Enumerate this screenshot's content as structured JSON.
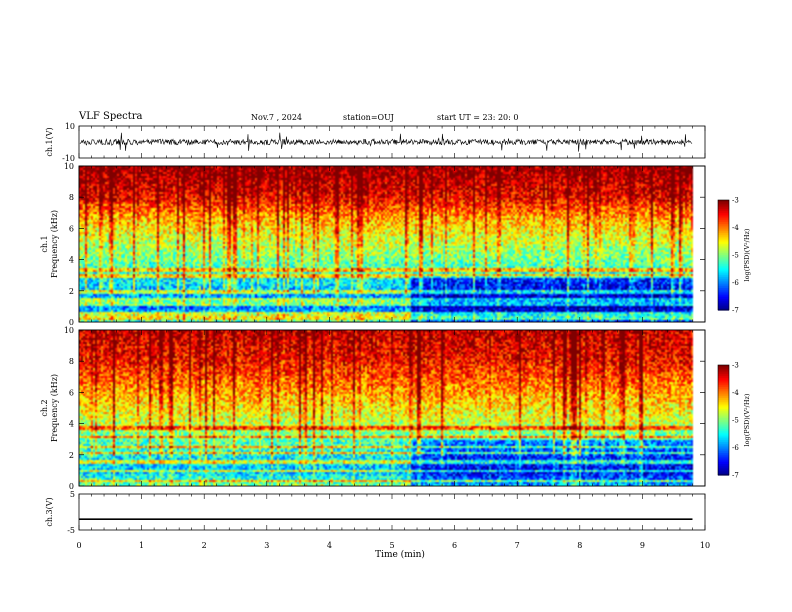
{
  "header": {
    "title": "VLF Spectra",
    "date": "Nov.7 , 2024",
    "station": "station=OUJ",
    "start": "start UT =  23: 20: 0"
  },
  "chart_data": [
    {
      "type": "line",
      "panel": "ch1-waveform",
      "ylabel": "ch.1(V)",
      "ylim": [
        -10,
        10
      ],
      "yticks": [
        "10",
        "-10"
      ],
      "x": [
        0,
        9.8
      ],
      "baseline": 0,
      "amplitude": "about +/-2 V noise with spikes to about +/-6 V",
      "color": "#000000"
    },
    {
      "type": "heatmap",
      "panel": "ch1-spectrogram",
      "ylabel": "ch.1",
      "ylabel2": "Frequency (kHz)",
      "ylim": [
        0,
        10
      ],
      "yticks": [
        "0",
        "2",
        "4",
        "6",
        "8",
        "10"
      ],
      "xlim": [
        0,
        9.8
      ],
      "colorbar": {
        "label": "log(PSD)(V²/Hz)",
        "ticks": [
          "-3",
          "-4",
          "-5",
          "-6",
          "-7"
        ],
        "range": [
          -7,
          -3
        ]
      },
      "level_profile": {
        "kHz": [
          0,
          1,
          2,
          3,
          4,
          5,
          6,
          7,
          8,
          10
        ],
        "log_psd": [
          -5.3,
          -6.1,
          -5.9,
          -5.6,
          -5.2,
          -4.9,
          -4.6,
          -4.2,
          -3.6,
          -3.2
        ]
      },
      "transition_min": 5.3,
      "lines_kHz": [
        0.3,
        0.6,
        1.2,
        1.5,
        2.0,
        3.0,
        3.4
      ]
    },
    {
      "type": "heatmap",
      "panel": "ch2-spectrogram",
      "ylabel": "ch.2",
      "ylabel2": "Frequency (kHz)",
      "ylim": [
        0,
        10
      ],
      "yticks": [
        "0",
        "2",
        "4",
        "6",
        "8",
        "10"
      ],
      "xlim": [
        0,
        9.8
      ],
      "colorbar": {
        "label": "log(PSD)(V²/Hz)",
        "ticks": [
          "-3",
          "-4",
          "-5",
          "-6",
          "-7"
        ],
        "range": [
          -7,
          -3
        ]
      },
      "level_profile": {
        "kHz": [
          0,
          1,
          2,
          3,
          4,
          5,
          6,
          7,
          8,
          10
        ],
        "log_psd": [
          -5.0,
          -5.8,
          -5.6,
          -5.3,
          -4.9,
          -4.6,
          -4.3,
          -4.0,
          -3.7,
          -3.4
        ]
      },
      "transition_min": 5.3,
      "lines_kHz": [
        0.4,
        1.0,
        1.6,
        2.2,
        2.6,
        3.2,
        3.8
      ]
    },
    {
      "type": "line",
      "panel": "ch3-waveform",
      "ylabel": "ch.3(V)",
      "ylim": [
        -5,
        5
      ],
      "yticks": [
        "5",
        "-5"
      ],
      "x": [
        0,
        9.8
      ],
      "y": [
        -2,
        -2
      ],
      "color": "#000000"
    }
  ],
  "xaxis": {
    "label": "Time (min)",
    "ticks": [
      "0",
      "1",
      "2",
      "3",
      "4",
      "5",
      "6",
      "7",
      "8",
      "9",
      "10"
    ],
    "range": [
      0,
      10
    ]
  }
}
